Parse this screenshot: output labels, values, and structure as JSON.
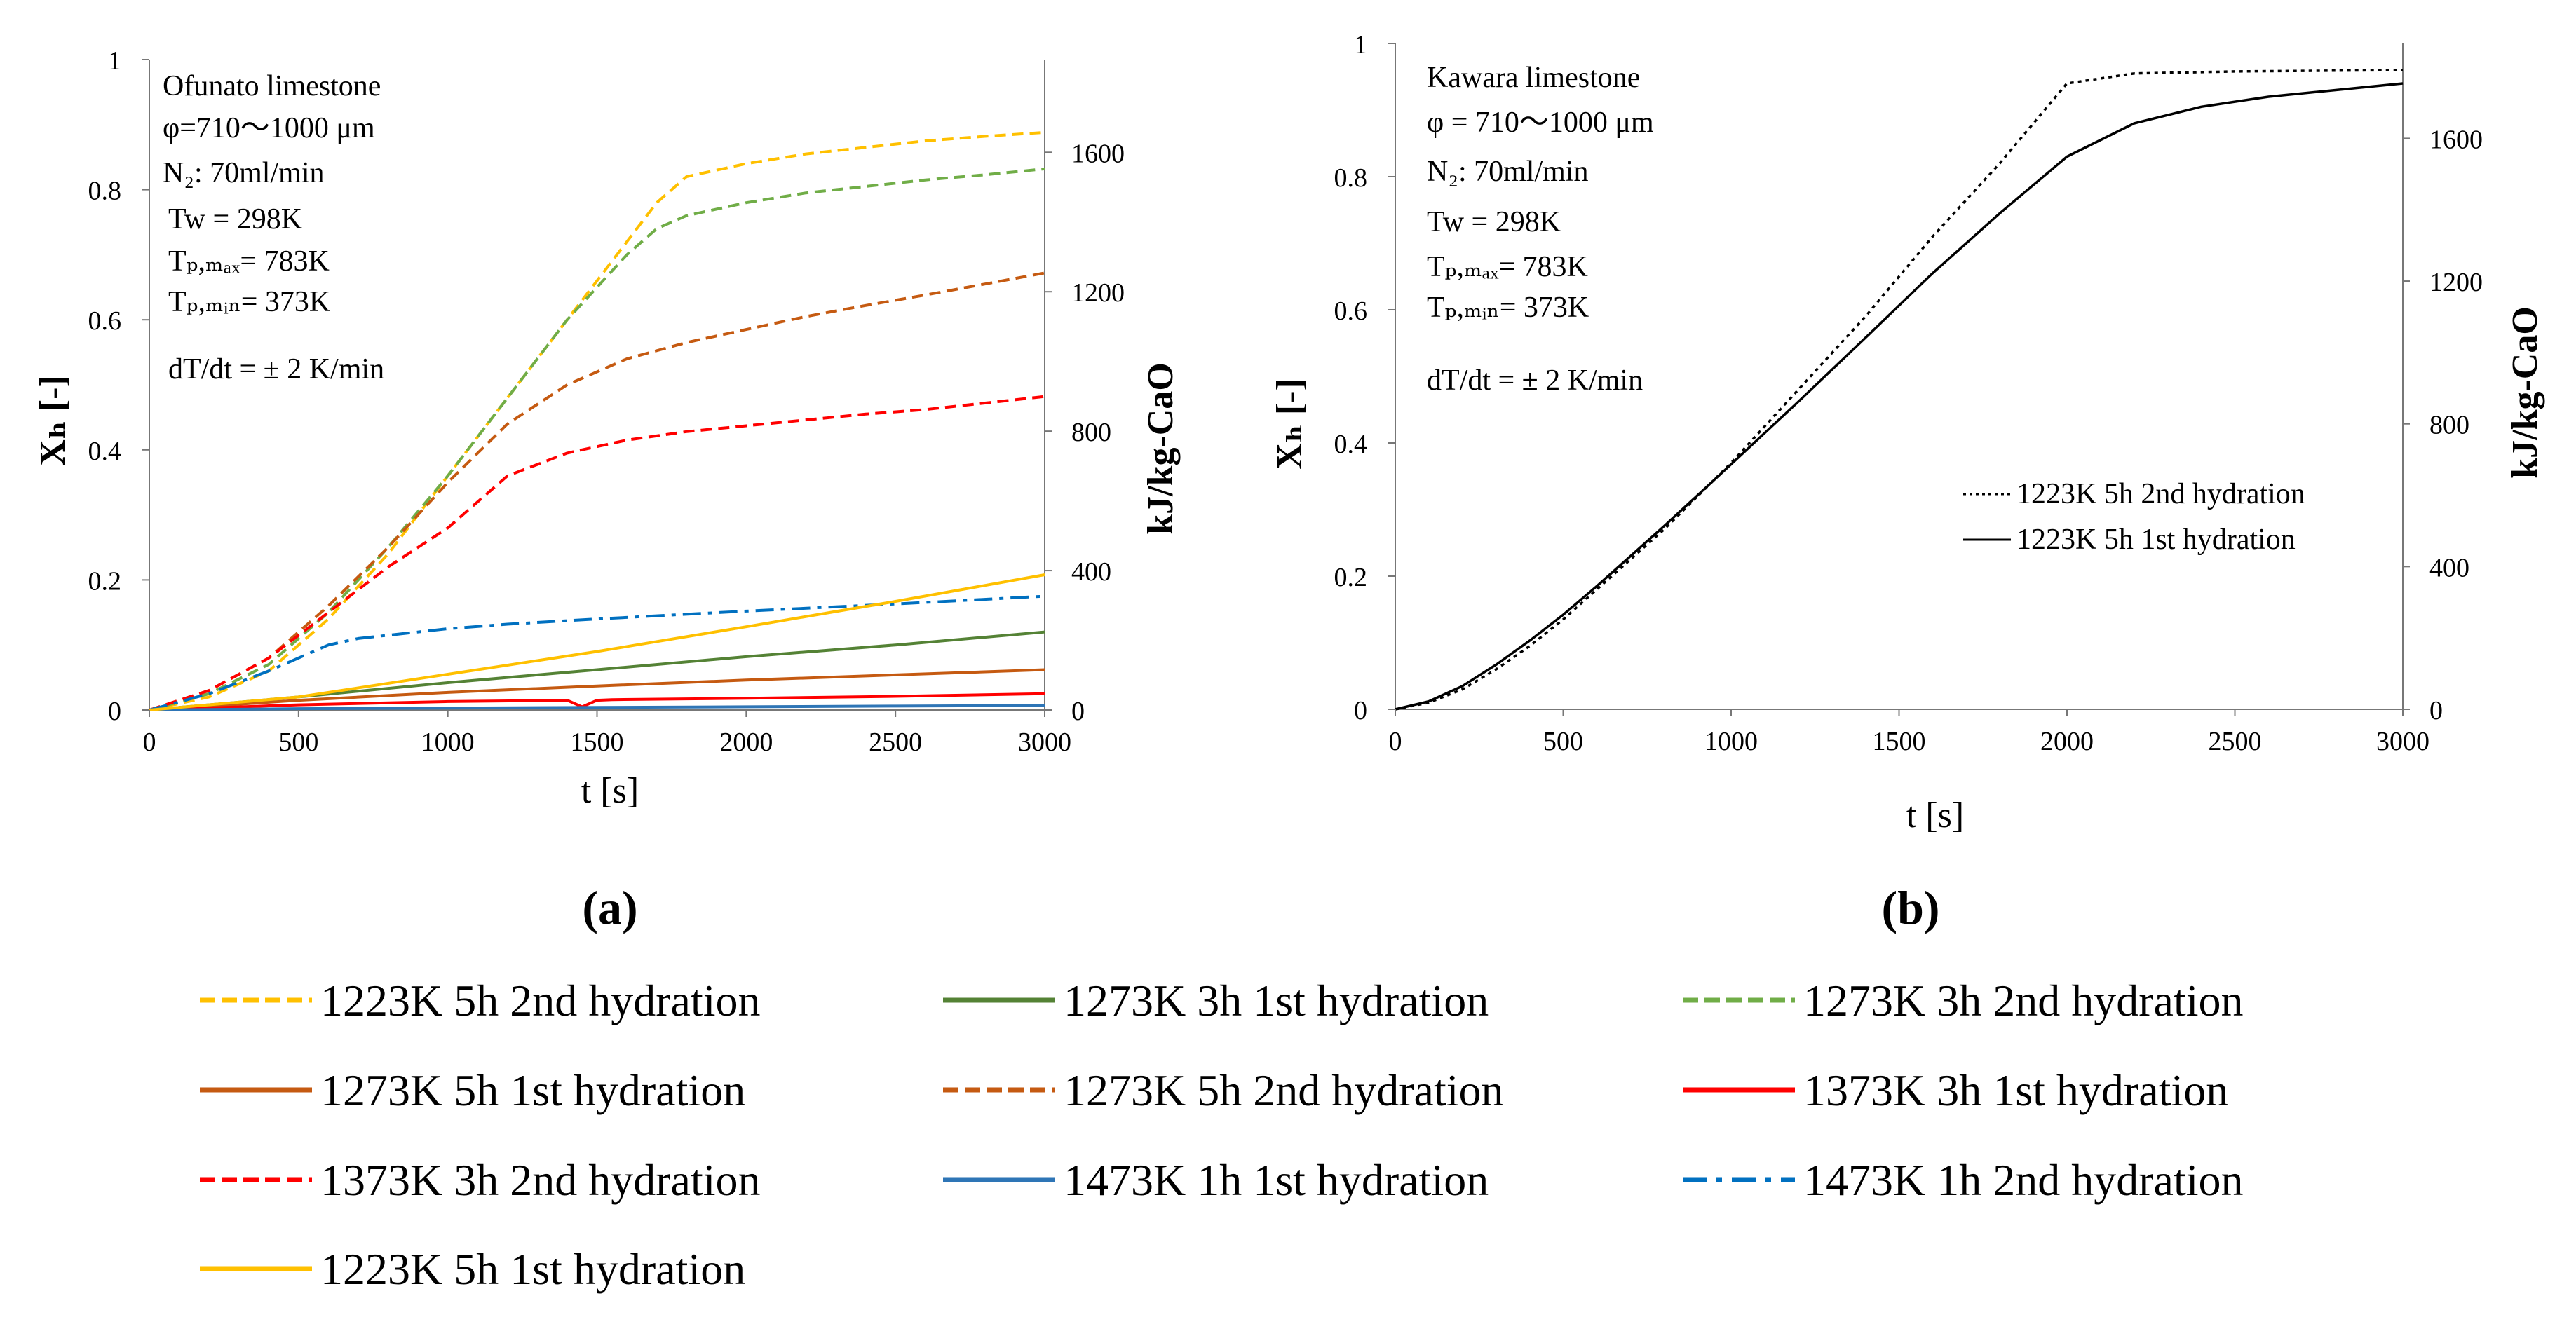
{
  "figure": {
    "panel_a_label": "(a)",
    "panel_b_label": "(b)"
  },
  "panel_a": {
    "info": {
      "material": "Ofunato limestone",
      "phi": "φ=710〜1000 μm",
      "n2": "N₂: 70ml/min",
      "tw": "Tw = 298K",
      "tpmax": "Tₚ,ₘₐₓ= 783K",
      "tpmin": "Tₚ,ₘᵢₙ= 373K",
      "dtdt": "dT/dt = ± 2 K/min"
    }
  },
  "panel_b": {
    "info": {
      "material": "Kawara limestone",
      "phi": "φ = 710〜1000 μm",
      "n2": "N₂: 70ml/min",
      "tw": "Tw = 298K",
      "tpmax": "Tₚ,ₘₐₓ= 783K",
      "tpmin": "Tₚ,ₘᵢₙ= 373K",
      "dtdt": "dT/dt = ± 2 K/min"
    }
  },
  "chart_data": [
    {
      "id": "a",
      "type": "line",
      "title": "",
      "xlabel": "t [s]",
      "ylabel": "Xₕ [-]",
      "y2label": "kJ/kg-CaO",
      "xlim": [
        0,
        3000
      ],
      "ylim": [
        0,
        1
      ],
      "y2lim": [
        0,
        1866
      ],
      "xticks": [
        "0",
        "500",
        "1000",
        "1500",
        "2000",
        "2500",
        "3000"
      ],
      "yticks": [
        "0",
        "0.2",
        "0.4",
        "0.6",
        "0.8",
        "1"
      ],
      "y2ticks": [
        "0",
        "400",
        "800",
        "1200",
        "1600"
      ],
      "series": [
        {
          "name": "1223K 5h 2nd hydration",
          "color": "#FFC000",
          "dash": "dashed",
          "x": [
            0,
            200,
            400,
            600,
            800,
            1000,
            1200,
            1400,
            1600,
            1700,
            1800,
            2000,
            2200,
            2400,
            2600,
            2800,
            3000
          ],
          "y": [
            0,
            0.02,
            0.06,
            0.14,
            0.24,
            0.36,
            0.48,
            0.6,
            0.72,
            0.78,
            0.82,
            0.84,
            0.855,
            0.865,
            0.875,
            0.882,
            0.888
          ]
        },
        {
          "name": "1273K 3h 1st hydration",
          "color": "#548235",
          "dash": "solid",
          "x": [
            0,
            500,
            1000,
            1500,
            2000,
            2500,
            3000
          ],
          "y": [
            0,
            0.02,
            0.042,
            0.062,
            0.082,
            0.1,
            0.12
          ]
        },
        {
          "name": "1273K 3h 2nd hydration",
          "color": "#70AD47",
          "dash": "dashed",
          "x": [
            0,
            200,
            400,
            600,
            800,
            1000,
            1200,
            1400,
            1600,
            1700,
            1800,
            2000,
            2200,
            2400,
            2600,
            2800,
            3000
          ],
          "y": [
            0,
            0.025,
            0.07,
            0.15,
            0.25,
            0.36,
            0.48,
            0.6,
            0.7,
            0.74,
            0.76,
            0.78,
            0.795,
            0.805,
            0.815,
            0.823,
            0.832
          ]
        },
        {
          "name": "1273K 5h 1st  hydration",
          "color": "#C55A11",
          "dash": "solid",
          "x": [
            0,
            500,
            1000,
            1500,
            2000,
            2500,
            3000
          ],
          "y": [
            0,
            0.015,
            0.027,
            0.037,
            0.046,
            0.054,
            0.062
          ]
        },
        {
          "name": "1273K 5h 2nd hydration",
          "color": "#C55A11",
          "dash": "dashed",
          "x": [
            0,
            200,
            400,
            600,
            800,
            1000,
            1200,
            1400,
            1600,
            1800,
            2000,
            2200,
            2400,
            2600,
            2800,
            3000
          ],
          "y": [
            0,
            0.03,
            0.08,
            0.16,
            0.25,
            0.35,
            0.44,
            0.5,
            0.54,
            0.565,
            0.585,
            0.605,
            0.622,
            0.638,
            0.655,
            0.672
          ]
        },
        {
          "name": "1373K 3h 1st hydration",
          "color": "#FF0000",
          "dash": "solid",
          "x": [
            0,
            500,
            1000,
            1400,
            1450,
            1500,
            1550,
            2000,
            2500,
            3000
          ],
          "y": [
            0,
            0.008,
            0.013,
            0.015,
            0.005,
            0.015,
            0.016,
            0.018,
            0.021,
            0.025
          ]
        },
        {
          "name": "1373K 3h 2nd hydration",
          "color": "#FF0000",
          "dash": "dashed",
          "x": [
            0,
            200,
            400,
            600,
            800,
            1000,
            1100,
            1200,
            1400,
            1600,
            1800,
            2000,
            2200,
            2400,
            2600,
            2800,
            3000
          ],
          "y": [
            0,
            0.03,
            0.08,
            0.15,
            0.22,
            0.28,
            0.32,
            0.36,
            0.395,
            0.415,
            0.428,
            0.437,
            0.446,
            0.455,
            0.462,
            0.472,
            0.482
          ]
        },
        {
          "name": "1473K 1h 1st hydration",
          "color": "#2E75B6",
          "dash": "solid",
          "x": [
            0,
            500,
            1000,
            1500,
            2000,
            2500,
            3000
          ],
          "y": [
            0,
            0.002,
            0.003,
            0.004,
            0.005,
            0.006,
            0.007
          ]
        },
        {
          "name": "1473K 1h 2nd hydration",
          "color": "#0070C0",
          "dash": "dashdot",
          "x": [
            0,
            200,
            400,
            600,
            700,
            800,
            1000,
            1200,
            1500,
            2000,
            2500,
            3000
          ],
          "y": [
            0,
            0.025,
            0.06,
            0.1,
            0.11,
            0.115,
            0.125,
            0.132,
            0.14,
            0.152,
            0.163,
            0.175
          ]
        },
        {
          "name": "1223K 5h 1st hydration",
          "color": "#FFC000",
          "dash": "solid",
          "x": [
            0,
            500,
            1000,
            1500,
            2000,
            2500,
            3000
          ],
          "y": [
            0,
            0.02,
            0.055,
            0.09,
            0.128,
            0.167,
            0.208
          ]
        }
      ]
    },
    {
      "id": "b",
      "type": "line",
      "title": "",
      "xlabel": "t [s]",
      "ylabel": "Xₕ [-]",
      "y2label": "kJ/kg-CaO",
      "xlim": [
        0,
        3000
      ],
      "ylim": [
        0,
        1
      ],
      "y2lim": [
        0,
        1866
      ],
      "xticks": [
        "0",
        "500",
        "1000",
        "1500",
        "2000",
        "2500",
        "3000"
      ],
      "yticks": [
        "0",
        "0.2",
        "0.4",
        "0.6",
        "0.8",
        "1"
      ],
      "y2ticks": [
        "0",
        "400",
        "800",
        "1200",
        "1600"
      ],
      "series": [
        {
          "name": "1223K 5h 2nd hydration",
          "color": "#000000",
          "dash": "dotted",
          "x": [
            0,
            100,
            200,
            300,
            400,
            500,
            600,
            800,
            1000,
            1200,
            1400,
            1600,
            1800,
            1900,
            2000,
            2200,
            2500,
            3000
          ],
          "y": [
            0,
            0.01,
            0.03,
            0.06,
            0.095,
            0.135,
            0.18,
            0.27,
            0.37,
            0.48,
            0.59,
            0.71,
            0.82,
            0.88,
            0.94,
            0.955,
            0.958,
            0.96
          ]
        },
        {
          "name": "1223K 5h 1st  hydration",
          "color": "#000000",
          "dash": "solid",
          "x": [
            0,
            100,
            200,
            300,
            400,
            500,
            600,
            800,
            1000,
            1200,
            1400,
            1600,
            1800,
            2000,
            2200,
            2400,
            2600,
            2800,
            3000
          ],
          "y": [
            0,
            0.012,
            0.035,
            0.067,
            0.103,
            0.142,
            0.185,
            0.275,
            0.368,
            0.462,
            0.558,
            0.655,
            0.745,
            0.83,
            0.88,
            0.905,
            0.92,
            0.93,
            0.94
          ]
        }
      ]
    }
  ],
  "legend": {
    "items": [
      {
        "label": "1223K 5h 2nd hydration",
        "color": "#FFC000",
        "dash": "dashed"
      },
      {
        "label": "1273K 3h 1st hydration",
        "color": "#548235",
        "dash": "solid"
      },
      {
        "label": "1273K 3h 2nd hydration",
        "color": "#70AD47",
        "dash": "dashed"
      },
      {
        "label": "1273K 5h 1st  hydration",
        "color": "#C55A11",
        "dash": "solid"
      },
      {
        "label": "1273K 5h 2nd hydration",
        "color": "#C55A11",
        "dash": "dashed"
      },
      {
        "label": "1373K 3h 1st hydration",
        "color": "#FF0000",
        "dash": "solid"
      },
      {
        "label": "1373K 3h 2nd hydration",
        "color": "#FF0000",
        "dash": "dashed"
      },
      {
        "label": "1473K 1h 1st hydration",
        "color": "#2E75B6",
        "dash": "solid"
      },
      {
        "label": "1473K 1h 2nd hydration",
        "color": "#0070C0",
        "dash": "dashdot"
      },
      {
        "label": "1223K 5h 1st hydration",
        "color": "#FFC000",
        "dash": "solid"
      }
    ]
  }
}
